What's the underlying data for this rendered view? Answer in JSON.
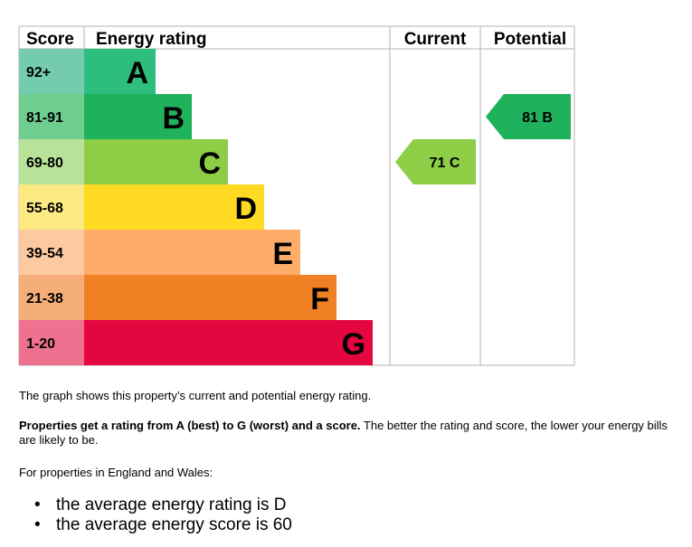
{
  "chart_data": {
    "type": "bar",
    "headers": {
      "score": "Score",
      "rating": "Energy rating",
      "current": "Current",
      "potential": "Potential"
    },
    "bands": [
      {
        "letter": "A",
        "range": "92+",
        "color": "#2dbd7c",
        "score_color": "#75ccad"
      },
      {
        "letter": "B",
        "range": "81-91",
        "color": "#1fb15c",
        "score_color": "#6fcd8f"
      },
      {
        "letter": "C",
        "range": "69-80",
        "color": "#8dce46",
        "score_color": "#b8e297"
      },
      {
        "letter": "D",
        "range": "55-68",
        "color": "#fedb22",
        "score_color": "#fdea83"
      },
      {
        "letter": "E",
        "range": "39-54",
        "color": "#fdac6a",
        "score_color": "#fdc9a1"
      },
      {
        "letter": "F",
        "range": "21-38",
        "color": "#ef8024",
        "score_color": "#f6ae79"
      },
      {
        "letter": "G",
        "range": "1-20",
        "color": "#e4063f",
        "score_color": "#ef7190"
      }
    ],
    "current": {
      "score": 71,
      "band": "C",
      "label": "71  C",
      "color": "#8dce46"
    },
    "potential": {
      "score": 81,
      "band": "B",
      "label": "81  B",
      "color": "#1fb15c"
    }
  },
  "text": {
    "line1": "The graph shows this property’s current and potential energy rating.",
    "line2_bold": "Properties get a rating from A (best) to G (worst) and a score.",
    "line2_rest": " The better the rating and score, the lower your energy bills are likely to be.",
    "line3": "For properties in England and Wales:",
    "bullets": [
      "the average energy rating is D",
      "the average energy score is 60"
    ]
  }
}
